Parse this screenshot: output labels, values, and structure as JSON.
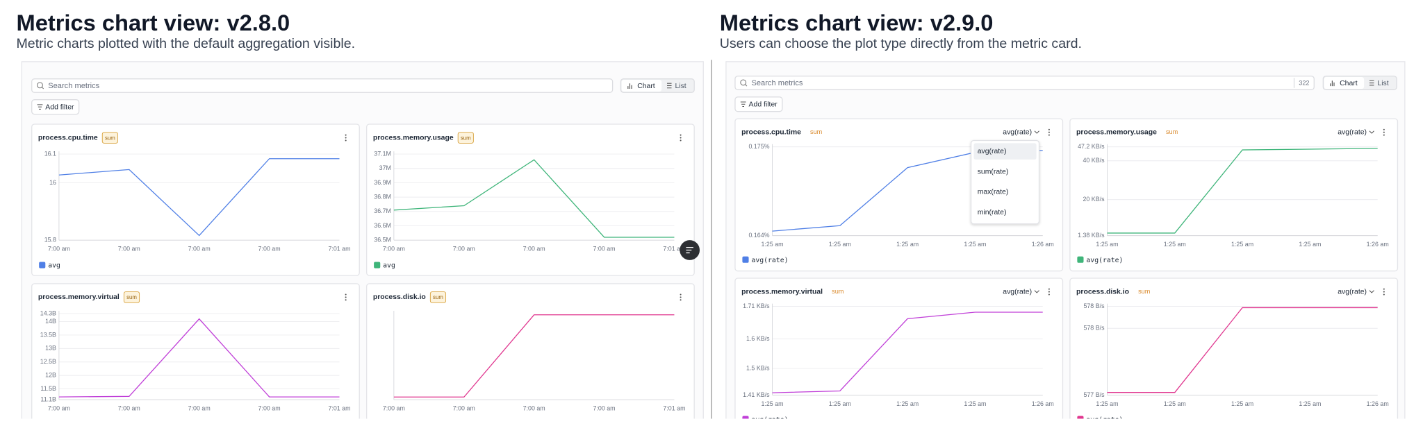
{
  "panels": [
    {
      "title": "Metrics chart view: v2.8.0",
      "subtitle": "Metric charts plotted with the default aggregation visible.",
      "search_placeholder": "Search metrics",
      "view_toggle": [
        "Chart",
        "List"
      ],
      "add_filter": "Add filter",
      "cards": [
        {
          "name": "process.cpu.time",
          "badge": "sum",
          "color": "#4f7fe6",
          "categories": [
            "7:00 am",
            "7:00 am",
            "7:00 am",
            "7:00 am",
            "7:01 am"
          ],
          "values": [
            16.027,
            16.046,
            15.816,
            16.084,
            16.084
          ],
          "ylim": [
            15.8,
            16.1
          ],
          "yticks": [
            15.8,
            16,
            16.1
          ],
          "legend": "avg"
        },
        {
          "name": "process.memory.usage",
          "badge": "sum",
          "color": "#3fb57a",
          "categories": [
            "7:00 am",
            "7:00 am",
            "7:00 am",
            "7:00 am",
            "7:01 am"
          ],
          "values": [
            36710000,
            36740000,
            37060000,
            36520000,
            36520000
          ],
          "ylim": [
            36500000,
            37100000
          ],
          "yticks": [
            {
              "value": 36500000,
              "label": "36.5M"
            },
            {
              "value": 36600000,
              "label": "36.6M"
            },
            {
              "value": 36700000,
              "label": "36.7M"
            },
            {
              "value": 36800000,
              "label": "36.8M"
            },
            {
              "value": 36900000,
              "label": "36.9M"
            },
            {
              "value": 37000000,
              "label": "37M"
            },
            {
              "value": 37100000,
              "label": "37.1M"
            }
          ],
          "legend": "avg"
        },
        {
          "name": "process.memory.virtual",
          "badge": "sum",
          "color": "#c03fd8",
          "categories": [
            "7:00 am",
            "7:00 am",
            "7:00 am",
            "7:00 am",
            "7:01 am"
          ],
          "values": [
            11200000000,
            11220000000,
            14100000000,
            11200000000,
            11200000000
          ],
          "ylim": [
            11100000000,
            14300000000
          ],
          "yticks": [
            {
              "value": 11100000000,
              "label": "11.1B"
            },
            {
              "value": 11500000000,
              "label": "11.5B"
            },
            {
              "value": 12000000000,
              "label": "12B"
            },
            {
              "value": 12500000000,
              "label": "12.5B"
            },
            {
              "value": 13000000000,
              "label": "13B"
            },
            {
              "value": 13500000000,
              "label": "13.5B"
            },
            {
              "value": 14000000000,
              "label": "14B"
            },
            {
              "value": 14300000000,
              "label": "14.3B"
            }
          ]
        },
        {
          "name": "process.disk.io",
          "badge": "sum",
          "color": "#e0368f",
          "categories": [
            "7:00 am",
            "7:00 am",
            "7:00 am",
            "7:00 am",
            "7:01 am"
          ],
          "values": [
            577.04,
            577.04,
            578.31,
            578.31,
            578.31
          ],
          "ylim": [
            577,
            578.33
          ]
        }
      ]
    },
    {
      "title": "Metrics chart view: v2.9.0",
      "subtitle": "Users can choose the plot type directly from the metric card.",
      "search_placeholder": "Search metrics",
      "search_count": "322",
      "view_toggle": [
        "Chart",
        "List"
      ],
      "add_filter": "Add filter",
      "cards": [
        {
          "name": "process.cpu.time",
          "badge": "sum",
          "aggregation": "avg(rate)",
          "color": "#4f7fe6",
          "categories": [
            "1:25 am",
            "1:25 am",
            "1:25 am",
            "1:25 am",
            "1:26 am"
          ],
          "values": [
            0.16456,
            0.16523,
            0.17242,
            0.17432,
            0.17455
          ],
          "ylim": [
            0.164,
            0.175
          ],
          "yticks": [
            {
              "value": 0.164,
              "label": "0.164%"
            },
            {
              "value": 0.175,
              "label": "0.175%"
            }
          ],
          "legend": "avg(rate)",
          "menu_options": [
            "avg(rate)",
            "sum(rate)",
            "max(rate)",
            "min(rate)"
          ]
        },
        {
          "name": "process.memory.usage",
          "badge": "sum",
          "aggregation": "avg(rate)",
          "color": "#3fb57a",
          "categories": [
            "1:25 am",
            "1:25 am",
            "1:25 am",
            "1:25 am",
            "1:26 am"
          ],
          "values": [
            2.7,
            2.7,
            45.6,
            46.0,
            46.4
          ],
          "ylim": [
            1.38,
            47.2
          ],
          "yticks": [
            {
              "value": 1.38,
              "label": "1.38 KB/s"
            },
            {
              "value": 20,
              "label": "20 KB/s"
            },
            {
              "value": 40,
              "label": "40 KB/s"
            },
            {
              "value": 47.2,
              "label": "47.2 KB/s"
            }
          ],
          "legend": "avg(rate)"
        },
        {
          "name": "process.memory.virtual",
          "badge": "sum",
          "aggregation": "avg(rate)",
          "color": "#c03fd8",
          "categories": [
            "1:25 am",
            "1:25 am",
            "1:25 am",
            "1:25 am",
            "1:26 am"
          ],
          "values": [
            1.418,
            1.424,
            1.668,
            1.69,
            1.69
          ],
          "ylim": [
            1.41,
            1.71
          ],
          "yticks": [
            {
              "value": 1.41,
              "label": "1.41 KB/s"
            },
            {
              "value": 1.5,
              "label": "1.5 KB/s"
            },
            {
              "value": 1.6,
              "label": "1.6 KB/s"
            },
            {
              "value": 1.71,
              "label": "1.71 KB/s"
            }
          ],
          "legend": "avg(rate)"
        },
        {
          "name": "process.disk.io",
          "badge": "sum",
          "aggregation": "avg(rate)",
          "color": "#e0368f",
          "categories": [
            "1:25 am",
            "1:25 am",
            "1:25 am",
            "1:25 am",
            "1:26 am"
          ],
          "values": [
            577.04,
            577.04,
            578.31,
            578.31,
            578.31
          ],
          "ylim": [
            577,
            578.33
          ],
          "yticks": [
            {
              "value": 577,
              "label": "577 B/s"
            },
            {
              "value": 578,
              "label": "578 B/s"
            },
            {
              "value": 578.33,
              "label": "578 B/s"
            }
          ],
          "legend": "avg(rate)"
        }
      ]
    }
  ]
}
